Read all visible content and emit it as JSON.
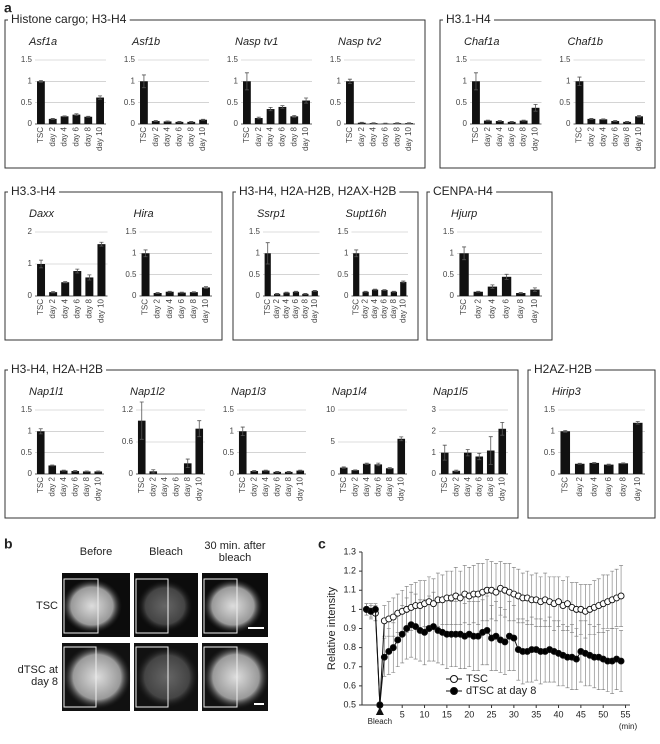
{
  "panel_labels": [
    "a",
    "b",
    "c"
  ],
  "groups": [
    {
      "title": "Histone cargo; H3-H4"
    },
    {
      "title": "H3.1-H4"
    },
    {
      "title": "H3.3-H4"
    },
    {
      "title": "H3-H4, H2A-H2B, H2AX-H2B"
    },
    {
      "title": "CENPA-H4"
    },
    {
      "title": "H3-H4, H2A-H2B"
    },
    {
      "title": "H2AZ-H2B"
    }
  ],
  "panel_b": {
    "columns": [
      "Before",
      "Bleach",
      "30 min. after bleach"
    ],
    "rows": [
      "TSC",
      "dTSC at day 8"
    ]
  },
  "chart_data": [
    {
      "type": "bar",
      "title": "Asf1a",
      "categories": [
        "TSC",
        "day 2",
        "day 4",
        "day 6",
        "day 8",
        "day 10"
      ],
      "values": [
        1.0,
        0.12,
        0.18,
        0.22,
        0.17,
        0.62
      ],
      "errors": [
        0.02,
        0.01,
        0.01,
        0.02,
        0.01,
        0.04
      ],
      "ylim": [
        0,
        1.5
      ],
      "yticks": [
        0,
        0.5,
        1,
        1.5
      ],
      "color": "#111111",
      "grid": true
    },
    {
      "type": "bar",
      "title": "Asf1b",
      "categories": [
        "TSC",
        "day 2",
        "day 4",
        "day 6",
        "day 8",
        "day 10"
      ],
      "values": [
        1.0,
        0.07,
        0.06,
        0.05,
        0.05,
        0.1
      ],
      "errors": [
        0.15,
        0.01,
        0.01,
        0.01,
        0.01,
        0.01
      ],
      "ylim": [
        0,
        1.5
      ],
      "yticks": [
        0,
        0.5,
        1,
        1.5
      ],
      "color": "#111111",
      "grid": true
    },
    {
      "type": "bar",
      "title": "Nasp tv1",
      "categories": [
        "TSC",
        "day 2",
        "day 4",
        "day 6",
        "day 8",
        "day 10"
      ],
      "values": [
        1.0,
        0.14,
        0.35,
        0.4,
        0.18,
        0.55
      ],
      "errors": [
        0.2,
        0.02,
        0.04,
        0.03,
        0.02,
        0.06
      ],
      "ylim": [
        0,
        1.5
      ],
      "yticks": [
        0,
        0.5,
        1,
        1.5
      ],
      "color": "#111111",
      "grid": true
    },
    {
      "type": "bar",
      "title": "Nasp tv2",
      "categories": [
        "TSC",
        "day 2",
        "day 4",
        "day 6",
        "day 8",
        "day 10"
      ],
      "values": [
        1.0,
        0.03,
        0.02,
        0.01,
        0.02,
        0.02
      ],
      "errors": [
        0.05,
        0.01,
        0.01,
        0.01,
        0.01,
        0.01
      ],
      "ylim": [
        0,
        1.5
      ],
      "yticks": [
        0,
        0.5,
        1,
        1.5
      ],
      "color": "#111111",
      "grid": true
    },
    {
      "type": "bar",
      "title": "Chaf1a",
      "categories": [
        "TSC",
        "day 2",
        "day 4",
        "day 6",
        "day 8",
        "day 10"
      ],
      "values": [
        1.0,
        0.08,
        0.07,
        0.05,
        0.08,
        0.38
      ],
      "errors": [
        0.2,
        0.01,
        0.01,
        0.01,
        0.01,
        0.08
      ],
      "ylim": [
        0,
        1.5
      ],
      "yticks": [
        0,
        0.5,
        1,
        1.5
      ],
      "color": "#111111",
      "grid": true
    },
    {
      "type": "bar",
      "title": "Chaf1b",
      "categories": [
        "TSC",
        "day 2",
        "day 4",
        "day 6",
        "day 8",
        "day 10"
      ],
      "values": [
        1.0,
        0.12,
        0.11,
        0.07,
        0.05,
        0.18
      ],
      "errors": [
        0.1,
        0.01,
        0.01,
        0.01,
        0.01,
        0.02
      ],
      "ylim": [
        0,
        1.5
      ],
      "yticks": [
        0,
        0.5,
        1,
        1.5
      ],
      "color": "#111111",
      "grid": true
    },
    {
      "type": "bar",
      "title": "Daxx",
      "categories": [
        "TSC",
        "day 2",
        "day 4",
        "day 6",
        "day 8",
        "day 10"
      ],
      "values": [
        1.0,
        0.12,
        0.43,
        0.78,
        0.58,
        1.62
      ],
      "errors": [
        0.12,
        0.02,
        0.02,
        0.06,
        0.08,
        0.06
      ],
      "ylim": [
        0,
        2
      ],
      "yticks": [
        0,
        1,
        2
      ],
      "color": "#111111",
      "grid": true
    },
    {
      "type": "bar",
      "title": "Hira",
      "categories": [
        "TSC",
        "day 2",
        "day 4",
        "day 6",
        "day 8",
        "day 10"
      ],
      "values": [
        1.0,
        0.07,
        0.1,
        0.08,
        0.09,
        0.2
      ],
      "errors": [
        0.08,
        0.01,
        0.01,
        0.01,
        0.01,
        0.02
      ],
      "ylim": [
        0,
        1.5
      ],
      "yticks": [
        0,
        0.5,
        1,
        1.5
      ],
      "color": "#111111",
      "grid": true
    },
    {
      "type": "bar",
      "title": "Ssrp1",
      "categories": [
        "TSC",
        "day 2",
        "day 4",
        "day 6",
        "day 8",
        "day 10"
      ],
      "values": [
        1.0,
        0.05,
        0.08,
        0.1,
        0.05,
        0.12
      ],
      "errors": [
        0.25,
        0.01,
        0.01,
        0.01,
        0.01,
        0.01
      ],
      "ylim": [
        0,
        1.5
      ],
      "yticks": [
        0,
        0.5,
        1,
        1.5
      ],
      "color": "#111111",
      "grid": true
    },
    {
      "type": "bar",
      "title": "Supt16h",
      "categories": [
        "TSC",
        "day 2",
        "day 4",
        "day 6",
        "day 8",
        "day 10"
      ],
      "values": [
        1.0,
        0.1,
        0.15,
        0.14,
        0.1,
        0.33
      ],
      "errors": [
        0.08,
        0.01,
        0.01,
        0.01,
        0.01,
        0.02
      ],
      "ylim": [
        0,
        1.5
      ],
      "yticks": [
        0,
        0.5,
        1,
        1.5
      ],
      "color": "#111111",
      "grid": true
    },
    {
      "type": "bar",
      "title": "Hjurp",
      "categories": [
        "TSC",
        "day 2",
        "day 4",
        "day 6",
        "day 8",
        "day 10"
      ],
      "values": [
        1.0,
        0.1,
        0.22,
        0.45,
        0.07,
        0.15
      ],
      "errors": [
        0.15,
        0.01,
        0.04,
        0.06,
        0.01,
        0.04
      ],
      "ylim": [
        0,
        1.5
      ],
      "yticks": [
        0,
        0.5,
        1,
        1.5
      ],
      "color": "#111111",
      "grid": true
    },
    {
      "type": "bar",
      "title": "Nap1l1",
      "categories": [
        "TSC",
        "day 2",
        "day 4",
        "day 6",
        "day 8",
        "day 10"
      ],
      "values": [
        1.0,
        0.2,
        0.08,
        0.07,
        0.06,
        0.06
      ],
      "errors": [
        0.06,
        0.01,
        0.01,
        0.01,
        0.01,
        0.01
      ],
      "ylim": [
        0,
        1.5
      ],
      "yticks": [
        0,
        0.5,
        1,
        1.5
      ],
      "color": "#111111",
      "grid": true
    },
    {
      "type": "bar",
      "title": "Nap1l2",
      "categories": [
        "TSC",
        "day 2",
        "day 4",
        "day 6",
        "day 8",
        "day 10"
      ],
      "values": [
        1.0,
        0.05,
        0.0,
        0.0,
        0.2,
        0.85
      ],
      "errors": [
        0.35,
        0.03,
        0.0,
        0.0,
        0.08,
        0.15
      ],
      "ylim": [
        0,
        1.2
      ],
      "yticks": [
        0,
        0.6,
        1.2
      ],
      "color": "#111111",
      "grid": true
    },
    {
      "type": "bar",
      "title": "Nap1l3",
      "categories": [
        "TSC",
        "day 2",
        "day 4",
        "day 6",
        "day 8",
        "day 10"
      ],
      "values": [
        1.0,
        0.07,
        0.08,
        0.05,
        0.05,
        0.08
      ],
      "errors": [
        0.1,
        0.01,
        0.01,
        0.01,
        0.01,
        0.01
      ],
      "ylim": [
        0,
        1.5
      ],
      "yticks": [
        0,
        0.5,
        1,
        1.5
      ],
      "color": "#111111",
      "grid": true
    },
    {
      "type": "bar",
      "title": "Nap1l4",
      "categories": [
        "TSC",
        "day 2",
        "day 4",
        "day 6",
        "day 8",
        "day 10"
      ],
      "values": [
        1.0,
        0.6,
        1.6,
        1.5,
        0.9,
        5.5
      ],
      "errors": [
        0.1,
        0.05,
        0.1,
        0.2,
        0.1,
        0.3
      ],
      "ylim": [
        0,
        10
      ],
      "yticks": [
        0,
        5,
        10
      ],
      "color": "#111111",
      "grid": true
    },
    {
      "type": "bar",
      "title": "Nap1l5",
      "categories": [
        "TSC",
        "day 2",
        "day 4",
        "day 6",
        "day 8",
        "day 10"
      ],
      "values": [
        1.0,
        0.15,
        1.0,
        0.82,
        1.1,
        2.12
      ],
      "errors": [
        0.35,
        0.03,
        0.15,
        0.15,
        0.65,
        0.3
      ],
      "ylim": [
        0,
        3
      ],
      "yticks": [
        0,
        1,
        2,
        3
      ],
      "color": "#111111",
      "grid": true
    },
    {
      "type": "bar",
      "title": "Hirip3",
      "categories": [
        "TSC",
        "day 2",
        "day 4",
        "day 6",
        "day 8",
        "day 10"
      ],
      "values": [
        1.0,
        0.24,
        0.26,
        0.22,
        0.25,
        1.2
      ],
      "errors": [
        0.02,
        0.01,
        0.01,
        0.01,
        0.01,
        0.03
      ],
      "ylim": [
        0,
        1.5
      ],
      "yticks": [
        0,
        0.5,
        1,
        1.5
      ],
      "color": "#111111",
      "grid": true
    },
    {
      "type": "line",
      "ylabel": "Relative intensity",
      "xlabel": "(min)",
      "x": [
        -3,
        -2,
        -1,
        0,
        1,
        2,
        3,
        4,
        5,
        6,
        7,
        8,
        9,
        10,
        11,
        12,
        13,
        14,
        15,
        16,
        17,
        18,
        19,
        20,
        21,
        22,
        23,
        24,
        25,
        26,
        27,
        28,
        29,
        30,
        31,
        32,
        33,
        34,
        35,
        36,
        37,
        38,
        39,
        40,
        41,
        42,
        43,
        44,
        45,
        46,
        47,
        48,
        49,
        50,
        51,
        52,
        53,
        54
      ],
      "xlim": [
        -4,
        56
      ],
      "xticks": [
        {
          "value": 0,
          "label": "Bleach"
        },
        5,
        10,
        15,
        20,
        25,
        30,
        35,
        40,
        45,
        50,
        55
      ],
      "ylim": [
        0.5,
        1.3
      ],
      "yticks": [
        0.5,
        0.6,
        0.7,
        0.8,
        0.9,
        1,
        1.1,
        1.2,
        1.3
      ],
      "legend": "lower center",
      "series": [
        {
          "name": "TSC",
          "color": "#ffffff",
          "values": [
            1.0,
            0.99,
            0.98,
            0.5,
            0.94,
            0.95,
            0.96,
            0.98,
            0.99,
            1.0,
            1.01,
            1.02,
            1.02,
            1.03,
            1.04,
            1.03,
            1.05,
            1.05,
            1.06,
            1.06,
            1.07,
            1.06,
            1.08,
            1.07,
            1.08,
            1.08,
            1.09,
            1.1,
            1.1,
            1.09,
            1.11,
            1.1,
            1.09,
            1.08,
            1.07,
            1.06,
            1.06,
            1.05,
            1.05,
            1.04,
            1.05,
            1.04,
            1.03,
            1.04,
            1.02,
            1.03,
            1.01,
            1.0,
            1.0,
            0.99,
            1.0,
            1.01,
            1.02,
            1.03,
            1.04,
            1.05,
            1.06,
            1.07
          ],
          "errors": [
            0.03,
            0.03,
            0.04,
            0,
            0.08,
            0.09,
            0.1,
            0.1,
            0.11,
            0.12,
            0.12,
            0.12,
            0.13,
            0.12,
            0.13,
            0.13,
            0.14,
            0.13,
            0.14,
            0.14,
            0.15,
            0.14,
            0.15,
            0.15,
            0.15,
            0.16,
            0.15,
            0.16,
            0.15,
            0.15,
            0.14,
            0.14,
            0.15,
            0.14,
            0.14,
            0.13,
            0.14,
            0.13,
            0.14,
            0.13,
            0.14,
            0.13,
            0.14,
            0.13,
            0.13,
            0.14,
            0.13,
            0.14,
            0.13,
            0.14,
            0.13,
            0.14,
            0.14,
            0.15,
            0.14,
            0.15,
            0.15,
            0.16
          ]
        },
        {
          "name": "dTSC at day 8",
          "color": "#000000",
          "values": [
            1.0,
            0.99,
            1.0,
            0.5,
            0.75,
            0.78,
            0.8,
            0.84,
            0.87,
            0.9,
            0.92,
            0.91,
            0.89,
            0.88,
            0.9,
            0.91,
            0.89,
            0.88,
            0.87,
            0.87,
            0.87,
            0.87,
            0.86,
            0.87,
            0.86,
            0.86,
            0.88,
            0.89,
            0.85,
            0.86,
            0.84,
            0.83,
            0.86,
            0.85,
            0.79,
            0.78,
            0.78,
            0.79,
            0.79,
            0.78,
            0.78,
            0.79,
            0.78,
            0.77,
            0.76,
            0.75,
            0.75,
            0.74,
            0.78,
            0.77,
            0.76,
            0.75,
            0.75,
            0.74,
            0.73,
            0.73,
            0.74,
            0.73
          ],
          "errors": [
            0.03,
            0.04,
            0.03,
            0,
            0.1,
            0.12,
            0.13,
            0.14,
            0.15,
            0.16,
            0.17,
            0.17,
            0.16,
            0.17,
            0.17,
            0.18,
            0.17,
            0.17,
            0.18,
            0.17,
            0.17,
            0.18,
            0.17,
            0.17,
            0.18,
            0.18,
            0.17,
            0.18,
            0.17,
            0.18,
            0.17,
            0.17,
            0.18,
            0.17,
            0.16,
            0.17,
            0.16,
            0.17,
            0.16,
            0.17,
            0.16,
            0.17,
            0.16,
            0.17,
            0.16,
            0.16,
            0.17,
            0.16,
            0.16,
            0.17,
            0.16,
            0.16,
            0.17,
            0.16,
            0.16,
            0.17,
            0.16,
            0.16
          ]
        }
      ]
    }
  ]
}
